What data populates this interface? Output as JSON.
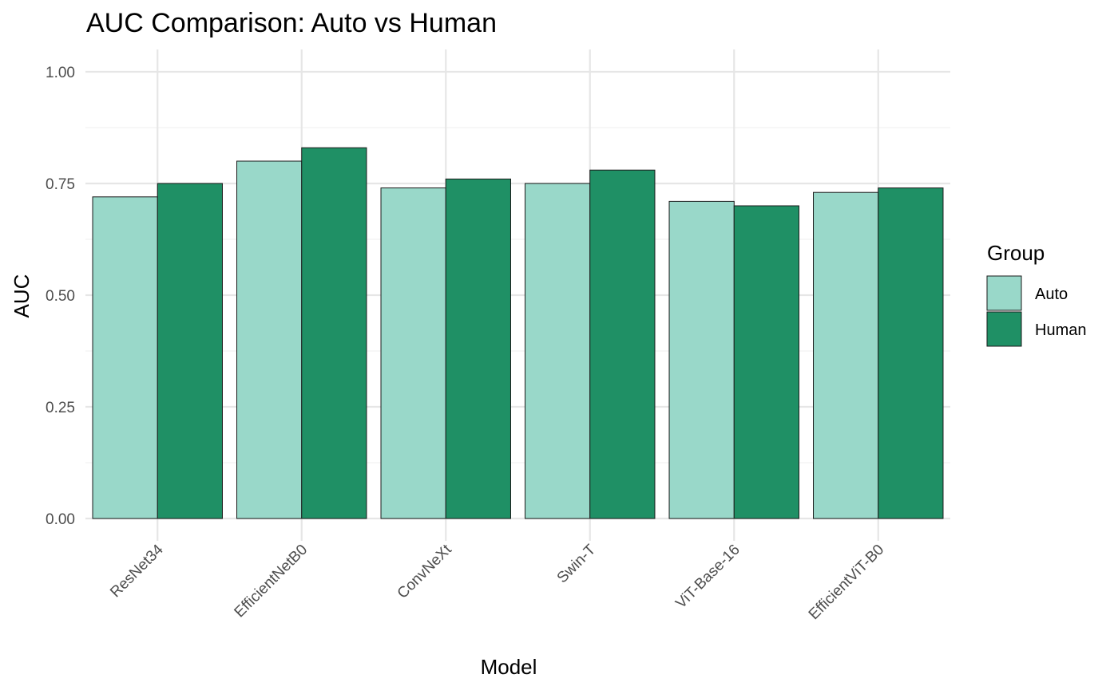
{
  "chart_data": {
    "type": "bar",
    "title": "AUC Comparison: Auto vs Human",
    "xlabel": "Model",
    "ylabel": "AUC",
    "categories": [
      "ResNet34",
      "EfficientNetB0",
      "ConvNeXt",
      "Swin-T",
      "ViT-Base-16",
      "EfficientViT-B0"
    ],
    "series": [
      {
        "name": "Auto",
        "color": "#99d8c9",
        "values": [
          0.72,
          0.8,
          0.74,
          0.75,
          0.71,
          0.73
        ]
      },
      {
        "name": "Human",
        "color": "#1f9065",
        "values": [
          0.75,
          0.83,
          0.76,
          0.78,
          0.7,
          0.74
        ]
      }
    ],
    "ylim": [
      0,
      1.0
    ],
    "yticks": [
      "0.00",
      "0.25",
      "0.50",
      "0.75",
      "1.00"
    ],
    "legend": {
      "title": "Group",
      "placement": "right"
    },
    "grid": true
  }
}
